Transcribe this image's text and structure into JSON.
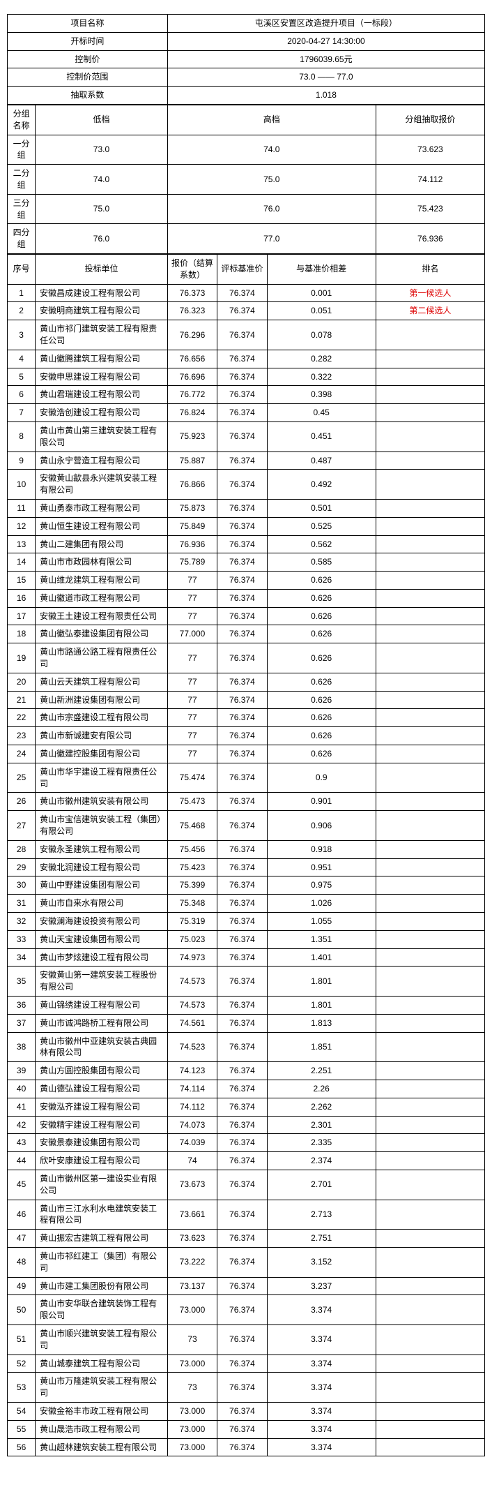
{
  "header": {
    "project_name_label": "项目名称",
    "project_name_value": "屯溪区安置区改造提升项目（一标段）",
    "open_time_label": "开标时间",
    "open_time_value": "2020-04-27 14:30:00",
    "control_price_label": "控制价",
    "control_price_value": "1796039.65元",
    "control_range_label": "控制价范围",
    "control_range_value": "73.0 —— 77.0",
    "draw_coef_label": "抽取系数",
    "draw_coef_value": "1.018"
  },
  "group": {
    "group_name_label": "分组名称",
    "low_label": "低档",
    "high_label": "高档",
    "group_price_label": "分组抽取报价",
    "rows": [
      {
        "name": "一分组",
        "low": "73.0",
        "high": "74.0",
        "price": "73.623"
      },
      {
        "name": "二分组",
        "low": "74.0",
        "high": "75.0",
        "price": "74.112"
      },
      {
        "name": "三分组",
        "low": "75.0",
        "high": "76.0",
        "price": "75.423"
      },
      {
        "name": "四分组",
        "low": "76.0",
        "high": "77.0",
        "price": "76.936"
      }
    ]
  },
  "table": {
    "headers": {
      "no": "序号",
      "unit": "投标单位",
      "price": "报价（结算系数）",
      "base": "评标基准价",
      "diff": "与基准价相差",
      "rank": "排名"
    },
    "rows": [
      {
        "no": "1",
        "unit": "安徽昌成建设工程有限公司",
        "price": "76.373",
        "base": "76.374",
        "diff": "0.001",
        "rank": "第一候选人",
        "red": true
      },
      {
        "no": "2",
        "unit": "安徽明商建筑工程有限公司",
        "price": "76.323",
        "base": "76.374",
        "diff": "0.051",
        "rank": "第二候选人",
        "red": true
      },
      {
        "no": "3",
        "unit": "黄山市祁门建筑安装工程有限责任公司",
        "price": "76.296",
        "base": "76.374",
        "diff": "0.078",
        "rank": ""
      },
      {
        "no": "4",
        "unit": "黄山徽腾建筑工程有限公司",
        "price": "76.656",
        "base": "76.374",
        "diff": "0.282",
        "rank": ""
      },
      {
        "no": "5",
        "unit": "安徽申思建设工程有限公司",
        "price": "76.696",
        "base": "76.374",
        "diff": "0.322",
        "rank": ""
      },
      {
        "no": "6",
        "unit": "黄山君瑞建设工程有限公司",
        "price": "76.772",
        "base": "76.374",
        "diff": "0.398",
        "rank": ""
      },
      {
        "no": "7",
        "unit": "安徽浩创建设工程有限公司",
        "price": "76.824",
        "base": "76.374",
        "diff": "0.45",
        "rank": ""
      },
      {
        "no": "8",
        "unit": "黄山市黄山第三建筑安装工程有限公司",
        "price": "75.923",
        "base": "76.374",
        "diff": "0.451",
        "rank": ""
      },
      {
        "no": "9",
        "unit": "黄山永宁营造工程有限公司",
        "price": "75.887",
        "base": "76.374",
        "diff": "0.487",
        "rank": ""
      },
      {
        "no": "10",
        "unit": "安徽黄山歙县永兴建筑安装工程有限公司",
        "price": "76.866",
        "base": "76.374",
        "diff": "0.492",
        "rank": ""
      },
      {
        "no": "11",
        "unit": "黄山勇泰市政工程有限公司",
        "price": "75.873",
        "base": "76.374",
        "diff": "0.501",
        "rank": ""
      },
      {
        "no": "12",
        "unit": "黄山恒生建设工程有限公司",
        "price": "75.849",
        "base": "76.374",
        "diff": "0.525",
        "rank": ""
      },
      {
        "no": "13",
        "unit": "黄山二建集团有限公司",
        "price": "76.936",
        "base": "76.374",
        "diff": "0.562",
        "rank": ""
      },
      {
        "no": "14",
        "unit": "黄山市市政园林有限公司",
        "price": "75.789",
        "base": "76.374",
        "diff": "0.585",
        "rank": ""
      },
      {
        "no": "15",
        "unit": "黄山维龙建筑工程有限公司",
        "price": "77",
        "base": "76.374",
        "diff": "0.626",
        "rank": ""
      },
      {
        "no": "16",
        "unit": "黄山徽道市政工程有限公司",
        "price": "77",
        "base": "76.374",
        "diff": "0.626",
        "rank": ""
      },
      {
        "no": "17",
        "unit": "安徽王土建设工程有限责任公司",
        "price": "77",
        "base": "76.374",
        "diff": "0.626",
        "rank": ""
      },
      {
        "no": "18",
        "unit": "黄山徽弘泰建设集团有限公司",
        "price": "77.000",
        "base": "76.374",
        "diff": "0.626",
        "rank": ""
      },
      {
        "no": "19",
        "unit": "黄山市路通公路工程有限责任公司",
        "price": "77",
        "base": "76.374",
        "diff": "0.626",
        "rank": ""
      },
      {
        "no": "20",
        "unit": "黄山云天建筑工程有限公司",
        "price": "77",
        "base": "76.374",
        "diff": "0.626",
        "rank": ""
      },
      {
        "no": "21",
        "unit": "黄山新洲建设集团有限公司",
        "price": "77",
        "base": "76.374",
        "diff": "0.626",
        "rank": ""
      },
      {
        "no": "22",
        "unit": "黄山市宗盛建设工程有限公司",
        "price": "77",
        "base": "76.374",
        "diff": "0.626",
        "rank": ""
      },
      {
        "no": "23",
        "unit": "黄山市新诚建安有限公司",
        "price": "77",
        "base": "76.374",
        "diff": "0.626",
        "rank": ""
      },
      {
        "no": "24",
        "unit": "黄山徽建控股集团有限公司",
        "price": "77",
        "base": "76.374",
        "diff": "0.626",
        "rank": ""
      },
      {
        "no": "25",
        "unit": "黄山市华宇建设工程有限责任公司",
        "price": "75.474",
        "base": "76.374",
        "diff": "0.9",
        "rank": ""
      },
      {
        "no": "26",
        "unit": "黄山市徽州建筑安装有限公司",
        "price": "75.473",
        "base": "76.374",
        "diff": "0.901",
        "rank": ""
      },
      {
        "no": "27",
        "unit": "黄山市宝信建筑安装工程（集团）有限公司",
        "price": "75.468",
        "base": "76.374",
        "diff": "0.906",
        "rank": ""
      },
      {
        "no": "28",
        "unit": "安徽永圣建筑工程有限公司",
        "price": "75.456",
        "base": "76.374",
        "diff": "0.918",
        "rank": ""
      },
      {
        "no": "29",
        "unit": "安徽北润建设工程有限公司",
        "price": "75.423",
        "base": "76.374",
        "diff": "0.951",
        "rank": ""
      },
      {
        "no": "30",
        "unit": "黄山中野建设集团有限公司",
        "price": "75.399",
        "base": "76.374",
        "diff": "0.975",
        "rank": ""
      },
      {
        "no": "31",
        "unit": "黄山市自来水有限公司",
        "price": "75.348",
        "base": "76.374",
        "diff": "1.026",
        "rank": ""
      },
      {
        "no": "32",
        "unit": "安徽澜海建设投资有限公司",
        "price": "75.319",
        "base": "76.374",
        "diff": "1.055",
        "rank": ""
      },
      {
        "no": "33",
        "unit": "黄山天宝建设集团有限公司",
        "price": "75.023",
        "base": "76.374",
        "diff": "1.351",
        "rank": ""
      },
      {
        "no": "34",
        "unit": "黄山市梦炫建设工程有限公司",
        "price": "74.973",
        "base": "76.374",
        "diff": "1.401",
        "rank": ""
      },
      {
        "no": "35",
        "unit": "安徽黄山第一建筑安装工程股份有限公司",
        "price": "74.573",
        "base": "76.374",
        "diff": "1.801",
        "rank": ""
      },
      {
        "no": "36",
        "unit": "黄山锦绣建设工程有限公司",
        "price": "74.573",
        "base": "76.374",
        "diff": "1.801",
        "rank": ""
      },
      {
        "no": "37",
        "unit": "黄山市诚鸿路桥工程有限公司",
        "price": "74.561",
        "base": "76.374",
        "diff": "1.813",
        "rank": ""
      },
      {
        "no": "38",
        "unit": "黄山市徽州中亚建筑安装古典园林有限公司",
        "price": "74.523",
        "base": "76.374",
        "diff": "1.851",
        "rank": ""
      },
      {
        "no": "39",
        "unit": "黄山方圆控股集团有限公司",
        "price": "74.123",
        "base": "76.374",
        "diff": "2.251",
        "rank": ""
      },
      {
        "no": "40",
        "unit": "黄山德弘建设工程有限公司",
        "price": "74.114",
        "base": "76.374",
        "diff": "2.26",
        "rank": ""
      },
      {
        "no": "41",
        "unit": "安徽泓齐建设工程有限公司",
        "price": "74.112",
        "base": "76.374",
        "diff": "2.262",
        "rank": ""
      },
      {
        "no": "42",
        "unit": "安徽精宇建设工程有限公司",
        "price": "74.073",
        "base": "76.374",
        "diff": "2.301",
        "rank": ""
      },
      {
        "no": "43",
        "unit": "安徽景泰建设集团有限公司",
        "price": "74.039",
        "base": "76.374",
        "diff": "2.335",
        "rank": ""
      },
      {
        "no": "44",
        "unit": "欣叶安康建设工程有限公司",
        "price": "74",
        "base": "76.374",
        "diff": "2.374",
        "rank": ""
      },
      {
        "no": "45",
        "unit": "黄山市徽州区第一建设实业有限公司",
        "price": "73.673",
        "base": "76.374",
        "diff": "2.701",
        "rank": ""
      },
      {
        "no": "46",
        "unit": "黄山市三江水利水电建筑安装工程有限公司",
        "price": "73.661",
        "base": "76.374",
        "diff": "2.713",
        "rank": ""
      },
      {
        "no": "47",
        "unit": "黄山振宏古建筑工程有限公司",
        "price": "73.623",
        "base": "76.374",
        "diff": "2.751",
        "rank": ""
      },
      {
        "no": "48",
        "unit": "黄山市祁红建工（集团）有限公司",
        "price": "73.222",
        "base": "76.374",
        "diff": "3.152",
        "rank": ""
      },
      {
        "no": "49",
        "unit": "黄山市建工集团股份有限公司",
        "price": "73.137",
        "base": "76.374",
        "diff": "3.237",
        "rank": ""
      },
      {
        "no": "50",
        "unit": "黄山市安华联合建筑装饰工程有限公司",
        "price": "73.000",
        "base": "76.374",
        "diff": "3.374",
        "rank": ""
      },
      {
        "no": "51",
        "unit": "黄山市顺兴建筑安装工程有限公司",
        "price": "73",
        "base": "76.374",
        "diff": "3.374",
        "rank": ""
      },
      {
        "no": "52",
        "unit": "黄山城泰建筑工程有限公司",
        "price": "73.000",
        "base": "76.374",
        "diff": "3.374",
        "rank": ""
      },
      {
        "no": "53",
        "unit": "黄山市万隆建筑安装工程有限公司",
        "price": "73",
        "base": "76.374",
        "diff": "3.374",
        "rank": ""
      },
      {
        "no": "54",
        "unit": "安徽金裕丰市政工程有限公司",
        "price": "73.000",
        "base": "76.374",
        "diff": "3.374",
        "rank": ""
      },
      {
        "no": "55",
        "unit": "黄山晟浩市政工程有限公司",
        "price": "73.000",
        "base": "76.374",
        "diff": "3.374",
        "rank": ""
      },
      {
        "no": "56",
        "unit": "黄山超林建筑安装工程有限公司",
        "price": "73.000",
        "base": "76.374",
        "diff": "3.374",
        "rank": ""
      }
    ]
  }
}
